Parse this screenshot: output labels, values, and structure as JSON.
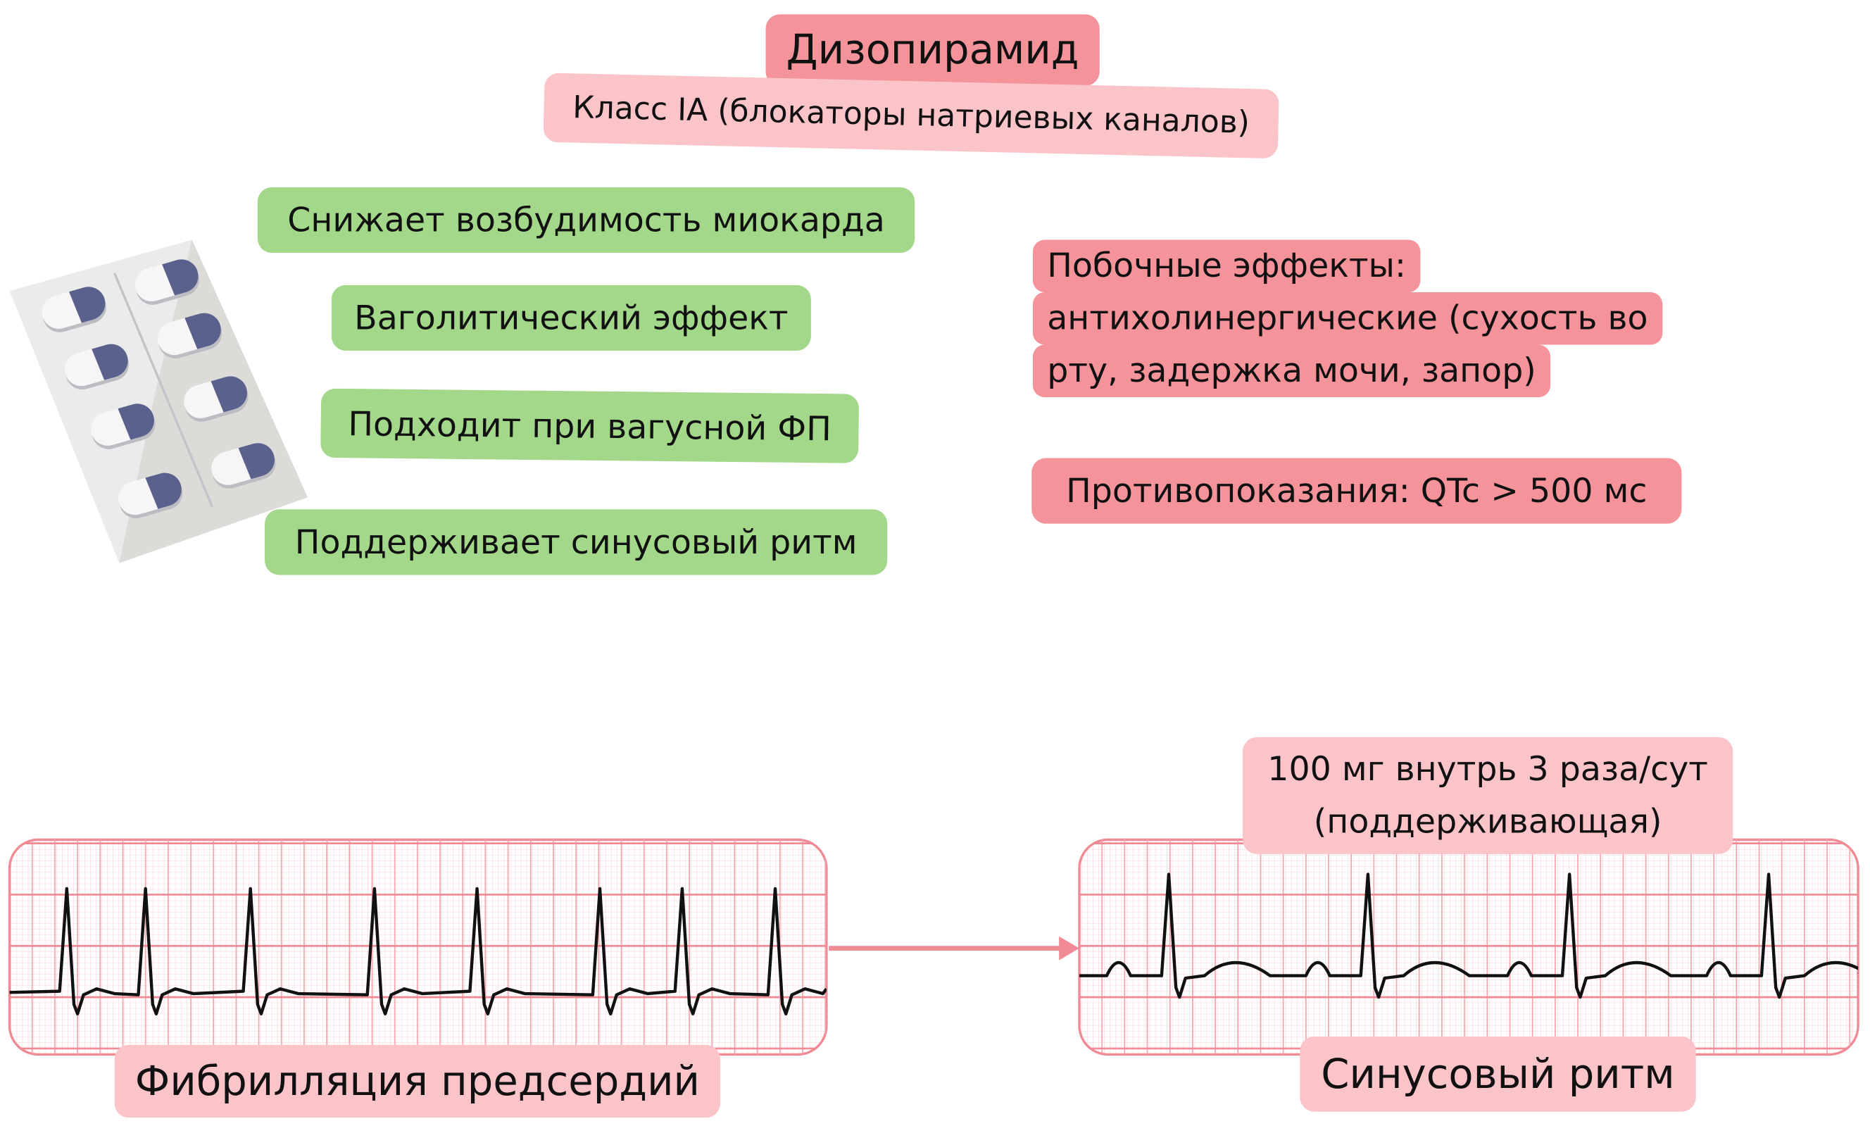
{
  "title": "Дизопирамид",
  "subtitle": "Класс IA (блокаторы натриевых каналов)",
  "effects": [
    "Снижает возбудимость миокарда",
    "Ваголитический эффект",
    "Подходит при вагусной ФП",
    "Поддерживает синусовый ритм"
  ],
  "side_effects": {
    "lines": [
      "Побочные эффекты:",
      "антихолинергические (сухость во",
      "рту, задержка мочи, запор)"
    ]
  },
  "contraindications": "Противопоказания: QTc > 500 мс",
  "ecg_left": {
    "label": "Фибрилляция предсердий"
  },
  "ecg_right": {
    "label": "Синусовый ритм"
  },
  "dose": {
    "line1": "100 мг внутрь 3 раза/сут",
    "line2": "(поддерживающая)"
  },
  "colors": {
    "green": "#a3d88b",
    "red": "#f4939a",
    "pink": "#fbc4c9",
    "grid": "#f08a94",
    "pill": "#5a618c"
  },
  "icons": {
    "blister": "pill-blister-icon",
    "arrow": "arrow-right-icon"
  }
}
